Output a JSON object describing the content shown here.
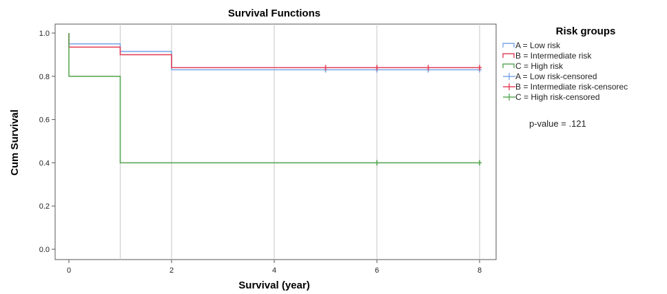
{
  "chart_data": {
    "type": "line",
    "subtype": "kaplan-meier step",
    "title": "Survival Functions",
    "xlabel": "Survival (year)",
    "ylabel": "Cum Survival",
    "xlim": [
      0,
      8
    ],
    "ylim": [
      0.0,
      1.0
    ],
    "x_ticks": [
      "0",
      "2",
      "4",
      "6",
      "8"
    ],
    "y_ticks": [
      "0.0",
      "0.2",
      "0.4",
      "0.6",
      "0.8",
      "1.0"
    ],
    "grid": "vertical lines at x ticks and x=1",
    "legend_title": "Risk groups",
    "legend_position": "right",
    "annotation": "p-value = .121",
    "series": [
      {
        "name": "A = Low risk",
        "color": "#7aa6e6",
        "steps": [
          {
            "x": 0,
            "y": 1.0
          },
          {
            "x": 0,
            "y": 0.95
          },
          {
            "x": 1,
            "y": 0.915
          },
          {
            "x": 2,
            "y": 0.83
          }
        ],
        "end_x": 8,
        "censored": [
          5,
          6,
          7,
          8
        ],
        "censored_label": "A = Low risk-censored"
      },
      {
        "name": "B = Intermediate risk",
        "color": "#e5425a",
        "steps": [
          {
            "x": 0,
            "y": 1.0
          },
          {
            "x": 0,
            "y": 0.935
          },
          {
            "x": 1,
            "y": 0.9
          },
          {
            "x": 2,
            "y": 0.84
          }
        ],
        "end_x": 8,
        "censored": [
          5,
          6,
          7,
          8
        ],
        "censored_label": "B = Intermediate risk-censorec"
      },
      {
        "name": "C = High risk",
        "color": "#5aa855",
        "steps": [
          {
            "x": 0,
            "y": 1.0
          },
          {
            "x": 0,
            "y": 0.8
          },
          {
            "x": 1,
            "y": 0.4
          }
        ],
        "end_x": 8,
        "censored": [
          6,
          8
        ],
        "censored_label": "C = High risk-censored"
      }
    ]
  }
}
